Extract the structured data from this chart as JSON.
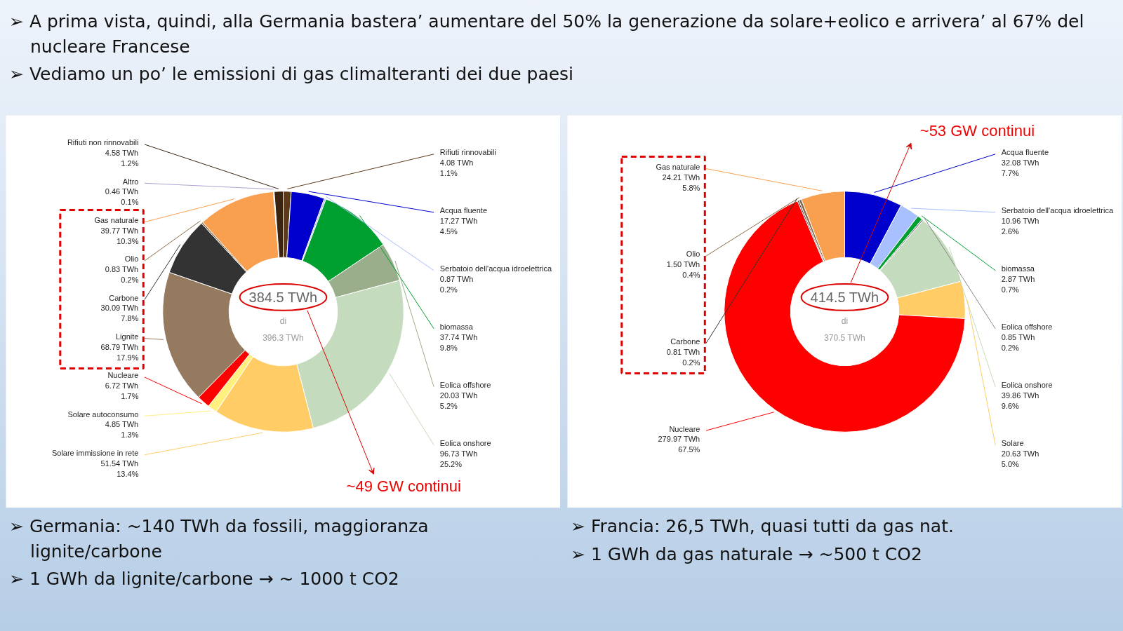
{
  "chart_data": [
    {
      "type": "donut",
      "categories": [
        "Rifiuti rinnovabili",
        "Acqua fluente",
        "Serbatoio dell'acqua idroelettrica",
        "biomassa",
        "Eolica offshore",
        "Eolica onshore",
        "Solare immissione in rete",
        "Solare autoconsumo",
        "Nucleare",
        "Lignite",
        "Carbone",
        "Olio",
        "Gas naturale",
        "Altro",
        "Rifiuti non rinnovabili"
      ],
      "values": [
        4.08,
        17.27,
        0.87,
        37.74,
        20.03,
        96.73,
        51.54,
        4.85,
        6.72,
        68.79,
        30.09,
        0.83,
        39.77,
        0.46,
        4.58
      ],
      "colors": [
        "#5a3a1a",
        "#0000cc",
        "#aabbff",
        "#00a030",
        "#9aae8c",
        "#c5dbbd",
        "#ffcc66",
        "#fff080",
        "#ff0000",
        "#957a60",
        "#333333",
        "#8a6a4a",
        "#f9a050",
        "#b0a0d0",
        "#3a2410"
      ],
      "value_labels": [
        "4.08 TWh\n1.1%",
        "17.27 TWh\n4.5%",
        "0.87 TWh\n0.2%",
        "37.74 TWh\n9.8%",
        "20.03 TWh\n5.2%",
        "96.73 TWh\n25.2%",
        "51.54 TWh\n13.4%",
        "4.85 TWh\n1.3%",
        "6.72 TWh\n1.7%",
        "68.79 TWh\n17.9%",
        "30.09 TWh\n7.8%",
        "0.83 TWh\n0.2%",
        "39.77 TWh\n10.3%",
        "0.46 TWh\n0.1%",
        "4.58 TWh\n1.2%"
      ],
      "annotations": [
        "➢ A prima vista, quindi, alla Germania bastera’ aumentare del 50% la generazione da solare+eolico e arrivera’ al 67% del nucleare Francese",
        "➢ Vediamo un po’ le emissioni di gas climalteranti dei due paesi",
        "384.5 TWh",
        "di",
        "396.3 TWh",
        "~49 GW continui",
        "➢ Germania: ~140 TWh da fossili, maggioranza lignite/carbone",
        "➢ 1 GWh da lignite/carbone → ~ 1000 t CO2"
      ]
    },
    {
      "type": "donut",
      "categories": [
        "Acqua fluente",
        "Serbatoio dell'acqua idroelettrica",
        "biomassa",
        "Eolica offshore",
        "Eolica onshore",
        "Solare",
        "Nucleare",
        "Carbone",
        "Olio",
        "Gas naturale"
      ],
      "values": [
        32.08,
        10.96,
        2.87,
        0.85,
        39.86,
        20.63,
        279.97,
        0.81,
        1.5,
        24.21
      ],
      "colors": [
        "#0000cc",
        "#a8c0ff",
        "#00a030",
        "#888888",
        "#c5dbbd",
        "#ffcc66",
        "#ff0000",
        "#333333",
        "#8a6a4a",
        "#f9a050"
      ],
      "value_labels": [
        "32.08 TWh\n7.7%",
        "10.96 TWh\n2.6%",
        "2.87 TWh\n0.7%",
        "0.85 TWh\n0.2%",
        "39.86 TWh\n9.6%",
        "20.63 TWh\n5.0%",
        "279.97 TWh\n67.5%",
        "0.81 TWh\n0.2%",
        "1.50 TWh\n0.4%",
        "24.21 TWh\n5.8%"
      ],
      "annotations": [
        "414.5 TWh",
        "di",
        "370.5 TWh",
        "~53 GW continui",
        "➢ Francia: 26,5 TWh, quasi tutti da gas nat.",
        "➢ 1 GWh da gas naturale → ~500 t CO2"
      ]
    }
  ]
}
